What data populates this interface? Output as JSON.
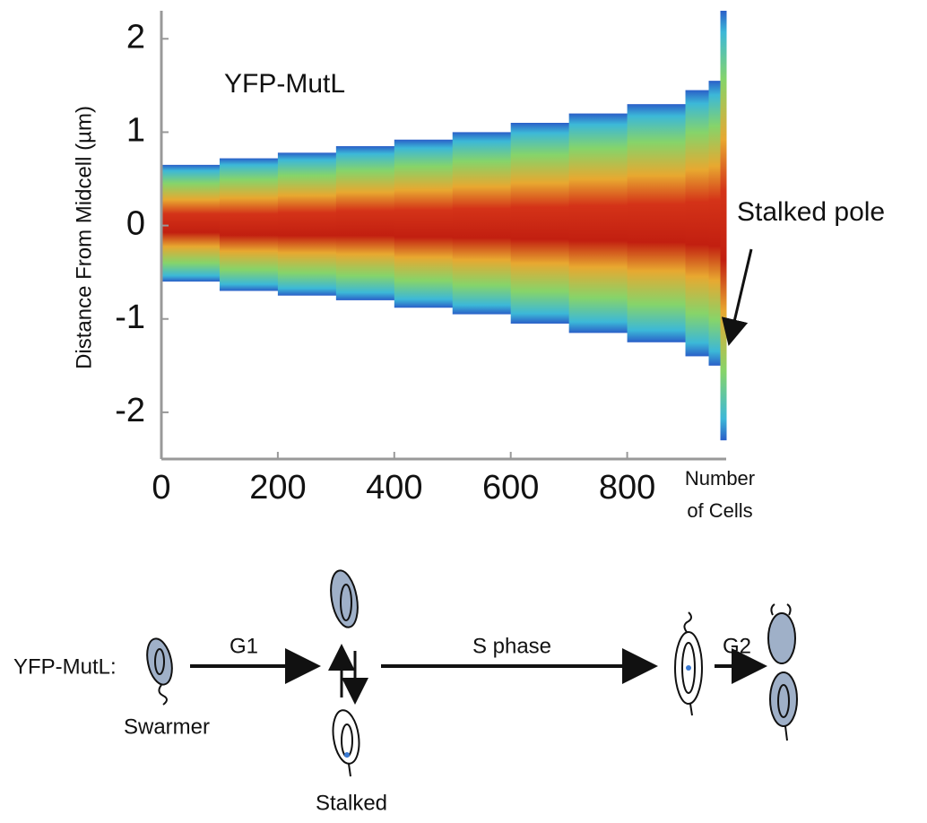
{
  "chart_data": {
    "type": "demograph",
    "ylabel": "Distance From Midcell (µm)",
    "xlabel": [
      "Number",
      "of Cells"
    ],
    "annotation": "YFP-MutL",
    "pole_label": "Stalked pole",
    "x": [
      0,
      100,
      200,
      300,
      400,
      500,
      600,
      700,
      800,
      900,
      940,
      960
    ],
    "upper": [
      0.65,
      0.72,
      0.78,
      0.85,
      0.92,
      1.0,
      1.1,
      1.2,
      1.3,
      1.45,
      1.55,
      2.3
    ],
    "lower": [
      -0.6,
      -0.7,
      -0.75,
      -0.8,
      -0.88,
      -0.95,
      -1.05,
      -1.15,
      -1.25,
      -1.4,
      -1.5,
      -2.3
    ],
    "xlim": [
      0,
      970
    ],
    "ylim": [
      -2.5,
      2.3
    ],
    "xticks": [
      0,
      200,
      400,
      600,
      800
    ],
    "yticks": [
      -2,
      -1,
      0,
      1,
      2
    ]
  },
  "diagram": {
    "label": "YFP-MutL:",
    "g1": "G1",
    "s_phase": "S phase",
    "g2": "G2",
    "swarmer": "Swarmer",
    "stalked": "Stalked"
  }
}
